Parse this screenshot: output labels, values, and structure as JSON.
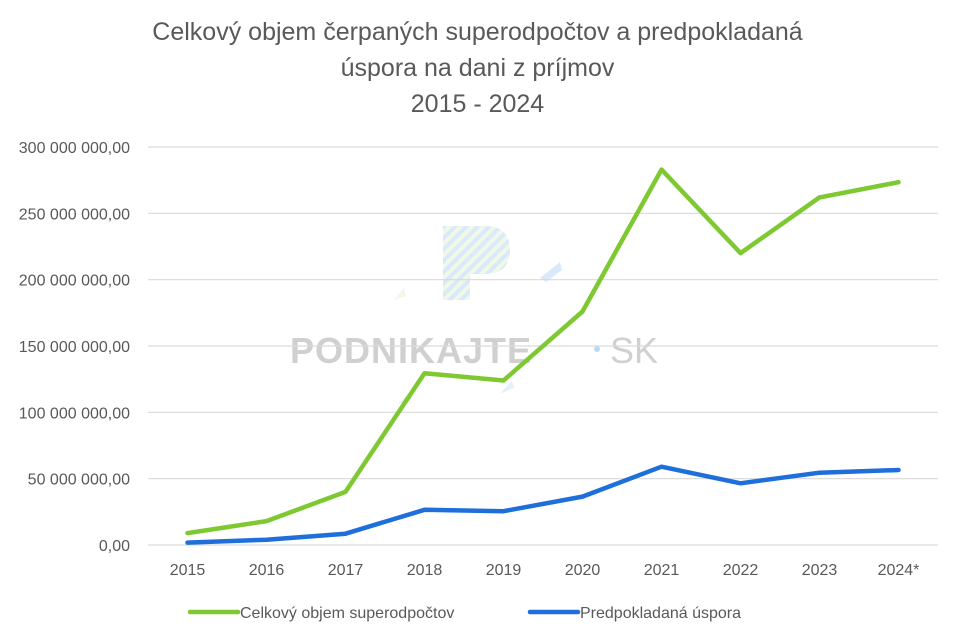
{
  "chart_data": {
    "type": "line",
    "title_lines": [
      "Celkový objem čerpaných superodpočtov a predpokladaná",
      "úspora na dani z príjmov",
      "2015 - 2024"
    ],
    "categories": [
      "2015",
      "2016",
      "2017",
      "2018",
      "2019",
      "2020",
      "2021",
      "2022",
      "2023",
      "2024*"
    ],
    "y_ticks": [
      "0,00",
      "50 000 000,00",
      "100 000 000,00",
      "150 000 000,00",
      "200 000 000,00",
      "250 000 000,00",
      "300 000 000,00"
    ],
    "ylim": [
      0,
      300000000
    ],
    "grid": true,
    "legend_position": "bottom",
    "series": [
      {
        "name": "Celkový objem superodpočtov",
        "color": "#7ec832",
        "values": [
          9000000,
          18000000,
          40000000,
          129500000,
          124000000,
          176000000,
          283000000,
          220000000,
          262000000,
          273500000
        ]
      },
      {
        "name": "Predpokladaná úspora",
        "color": "#1e6fd9",
        "values": [
          1800000,
          4000000,
          8500000,
          26500000,
          25500000,
          36500000,
          59000000,
          46500000,
          54500000,
          56500000
        ]
      }
    ]
  },
  "watermark": {
    "brand": "PODNIKAJTE",
    "suffix": "SK"
  }
}
